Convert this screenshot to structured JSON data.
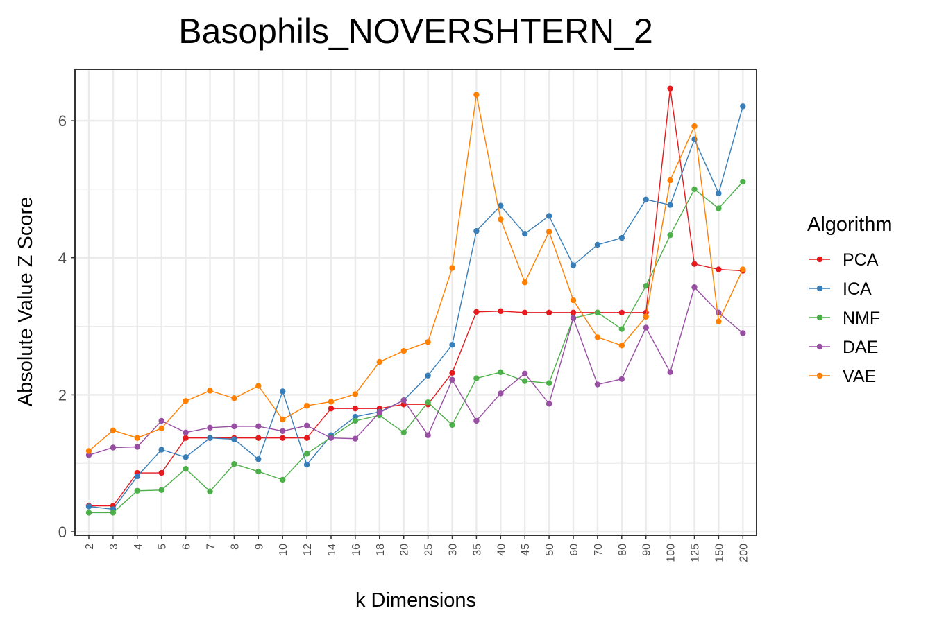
{
  "chart_data": {
    "type": "line",
    "title": "Basophils_NOVERSHTERN_2",
    "xlabel": "k Dimensions",
    "ylabel": "Absolute Value Z Score",
    "ylim": [
      -0.05,
      6.75
    ],
    "yticks": [
      0,
      2,
      4,
      6
    ],
    "grid": true,
    "legend_title": "Algorithm",
    "legend_position": "right",
    "categories": [
      "2",
      "3",
      "4",
      "5",
      "6",
      "7",
      "8",
      "9",
      "10",
      "12",
      "14",
      "16",
      "18",
      "20",
      "25",
      "30",
      "35",
      "40",
      "45",
      "50",
      "60",
      "70",
      "80",
      "90",
      "100",
      "125",
      "150",
      "200"
    ],
    "series": [
      {
        "name": "PCA",
        "color": "#E41A1C",
        "values": [
          0.38,
          0.38,
          0.86,
          0.86,
          1.37,
          1.37,
          1.37,
          1.37,
          1.37,
          1.37,
          1.8,
          1.8,
          1.8,
          1.86,
          1.86,
          2.32,
          3.21,
          3.22,
          3.2,
          3.2,
          3.2,
          3.2,
          3.2,
          3.2,
          6.47,
          3.91,
          3.83,
          3.81
        ]
      },
      {
        "name": "ICA",
        "color": "#377EB8",
        "values": [
          0.37,
          0.33,
          0.81,
          1.2,
          1.09,
          1.37,
          1.35,
          1.06,
          2.05,
          0.98,
          1.41,
          1.68,
          1.75,
          1.92,
          2.28,
          2.73,
          4.39,
          4.76,
          4.35,
          4.61,
          3.89,
          4.19,
          4.29,
          4.85,
          4.77,
          5.73,
          4.94,
          6.21
        ]
      },
      {
        "name": "NMF",
        "color": "#4DAF4A",
        "values": [
          0.28,
          0.28,
          0.6,
          0.61,
          0.92,
          0.59,
          0.99,
          0.88,
          0.76,
          1.14,
          1.38,
          1.62,
          1.7,
          1.45,
          1.89,
          1.56,
          2.24,
          2.33,
          2.2,
          2.17,
          3.12,
          3.2,
          2.96,
          3.59,
          4.33,
          5.0,
          4.72,
          5.11
        ]
      },
      {
        "name": "DAE",
        "color": "#984EA3",
        "values": [
          1.12,
          1.23,
          1.24,
          1.62,
          1.45,
          1.52,
          1.54,
          1.54,
          1.47,
          1.55,
          1.37,
          1.36,
          1.74,
          1.92,
          1.41,
          2.22,
          1.62,
          2.02,
          2.31,
          1.87,
          3.12,
          2.15,
          2.23,
          2.98,
          2.33,
          3.57,
          3.2,
          2.9
        ]
      },
      {
        "name": "VAE",
        "color": "#FF7F00",
        "values": [
          1.18,
          1.48,
          1.37,
          1.51,
          1.91,
          2.06,
          1.95,
          2.13,
          1.64,
          1.84,
          1.9,
          2.01,
          2.48,
          2.64,
          2.77,
          3.85,
          6.38,
          4.56,
          3.64,
          4.38,
          3.38,
          2.84,
          2.72,
          3.14,
          5.13,
          5.92,
          3.07,
          3.83
        ]
      }
    ]
  }
}
